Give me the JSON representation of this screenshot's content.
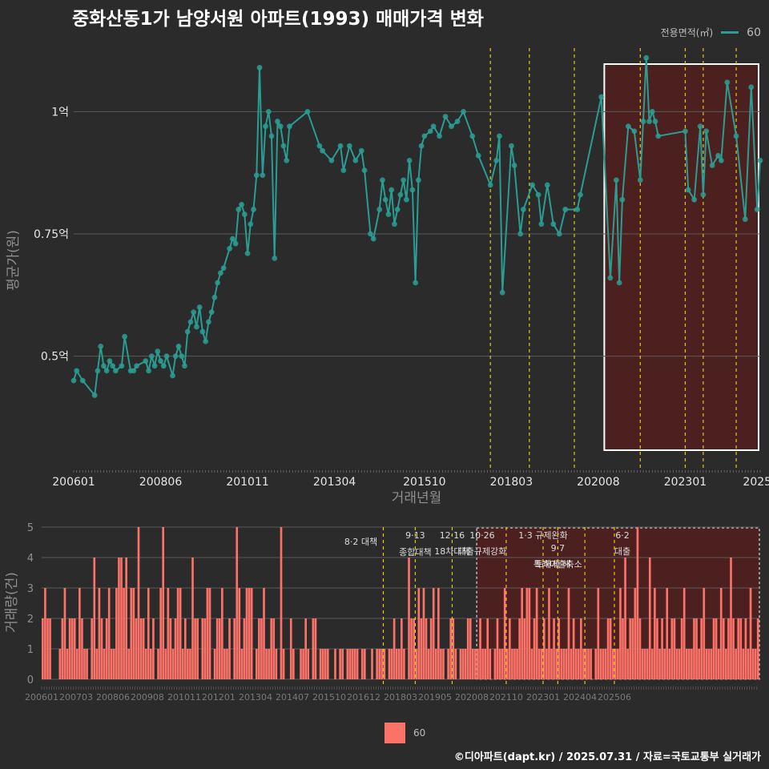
{
  "title": "중화산동1가 남양서원 아파트(1993) 매매가격 변화",
  "legend": {
    "title": "전용면적(㎡)",
    "series_label": "60"
  },
  "credit": "©디아파트(dapt.kr) / 2025.07.31 / 자료=국토교통부 실거래가",
  "colors": {
    "background": "#2b2b2b",
    "price": "#2a9d93",
    "volume": "#fa7268",
    "policy": "#e6c619",
    "highlight_fill": "#5a1e1e"
  },
  "chart_data": [
    {
      "type": "line",
      "xlabel": "거래년월",
      "ylabel": "평균가(원)",
      "x_ticks": [
        "200601",
        "200806",
        "201011",
        "201304",
        "201510",
        "201803",
        "202008",
        "202301",
        "2025"
      ],
      "y_ticks": [
        "0.5억",
        "0.75억",
        "1억"
      ],
      "ylim": [
        0.27,
        1.13
      ],
      "y_unit": "억원",
      "highlight_start": "202010",
      "policy_lines": [
        "201708",
        "201809",
        "201912",
        "202110",
        "202301",
        "202307",
        "202406",
        "202506"
      ],
      "series": [
        {
          "name": "60",
          "points": [
            [
              "200601",
              0.45
            ],
            [
              "200602",
              0.47
            ],
            [
              "200604",
              0.45
            ],
            [
              "200608",
              0.42
            ],
            [
              "200609",
              0.47
            ],
            [
              "200610",
              0.52
            ],
            [
              "200611",
              0.48
            ],
            [
              "200612",
              0.47
            ],
            [
              "200701",
              0.49
            ],
            [
              "200702",
              0.48
            ],
            [
              "200703",
              0.47
            ],
            [
              "200705",
              0.48
            ],
            [
              "200706",
              0.54
            ],
            [
              "200708",
              0.47
            ],
            [
              "200709",
              0.47
            ],
            [
              "200710",
              0.48
            ],
            [
              "200801",
              0.49
            ],
            [
              "200802",
              0.47
            ],
            [
              "200803",
              0.5
            ],
            [
              "200804",
              0.48
            ],
            [
              "200805",
              0.51
            ],
            [
              "200806",
              0.49
            ],
            [
              "200807",
              0.48
            ],
            [
              "200808",
              0.5
            ],
            [
              "200810",
              0.46
            ],
            [
              "200811",
              0.5
            ],
            [
              "200812",
              0.52
            ],
            [
              "200901",
              0.5
            ],
            [
              "200902",
              0.48
            ],
            [
              "200903",
              0.55
            ],
            [
              "200904",
              0.57
            ],
            [
              "200905",
              0.59
            ],
            [
              "200906",
              0.56
            ],
            [
              "200907",
              0.6
            ],
            [
              "200908",
              0.55
            ],
            [
              "200909",
              0.53
            ],
            [
              "200910",
              0.57
            ],
            [
              "200911",
              0.59
            ],
            [
              "200912",
              0.62
            ],
            [
              "201001",
              0.65
            ],
            [
              "201002",
              0.67
            ],
            [
              "201003",
              0.68
            ],
            [
              "201005",
              0.72
            ],
            [
              "201006",
              0.74
            ],
            [
              "201007",
              0.73
            ],
            [
              "201008",
              0.8
            ],
            [
              "201009",
              0.81
            ],
            [
              "201010",
              0.79
            ],
            [
              "201011",
              0.71
            ],
            [
              "201012",
              0.77
            ],
            [
              "201101",
              0.8
            ],
            [
              "201102",
              0.87
            ],
            [
              "201103",
              1.09
            ],
            [
              "201104",
              0.87
            ],
            [
              "201105",
              0.97
            ],
            [
              "201106",
              1.0
            ],
            [
              "201107",
              0.95
            ],
            [
              "201108",
              0.7
            ],
            [
              "201109",
              0.98
            ],
            [
              "201110",
              0.97
            ],
            [
              "201111",
              0.93
            ],
            [
              "201112",
              0.9
            ],
            [
              "201201",
              0.97
            ],
            [
              "201207",
              1.0
            ],
            [
              "201211",
              0.93
            ],
            [
              "201212",
              0.92
            ],
            [
              "201303",
              0.9
            ],
            [
              "201306",
              0.93
            ],
            [
              "201307",
              0.88
            ],
            [
              "201309",
              0.93
            ],
            [
              "201311",
              0.9
            ],
            [
              "201401",
              0.92
            ],
            [
              "201402",
              0.88
            ],
            [
              "201404",
              0.75
            ],
            [
              "201405",
              0.74
            ],
            [
              "201407",
              0.8
            ],
            [
              "201408",
              0.86
            ],
            [
              "201409",
              0.82
            ],
            [
              "201410",
              0.79
            ],
            [
              "201411",
              0.84
            ],
            [
              "201412",
              0.77
            ],
            [
              "201501",
              0.8
            ],
            [
              "201502",
              0.83
            ],
            [
              "201503",
              0.86
            ],
            [
              "201504",
              0.82
            ],
            [
              "201505",
              0.9
            ],
            [
              "201506",
              0.84
            ],
            [
              "201507",
              0.65
            ],
            [
              "201508",
              0.86
            ],
            [
              "201509",
              0.93
            ],
            [
              "201510",
              0.95
            ],
            [
              "201512",
              0.96
            ],
            [
              "201601",
              0.97
            ],
            [
              "201603",
              0.95
            ],
            [
              "201605",
              0.99
            ],
            [
              "201607",
              0.97
            ],
            [
              "201609",
              0.98
            ],
            [
              "201611",
              1.0
            ],
            [
              "201702",
              0.95
            ],
            [
              "201704",
              0.91
            ],
            [
              "201708",
              0.85
            ],
            [
              "201710",
              0.9
            ],
            [
              "201711",
              0.95
            ],
            [
              "201712",
              0.63
            ],
            [
              "201803",
              0.93
            ],
            [
              "201804",
              0.89
            ],
            [
              "201806",
              0.75
            ],
            [
              "201807",
              0.8
            ],
            [
              "201810",
              0.85
            ],
            [
              "201812",
              0.83
            ],
            [
              "201901",
              0.77
            ],
            [
              "201903",
              0.85
            ],
            [
              "201905",
              0.77
            ],
            [
              "201907",
              0.75
            ],
            [
              "201909",
              0.8
            ],
            [
              "202001",
              0.8
            ],
            [
              "202002",
              0.83
            ],
            [
              "202009",
              1.03
            ],
            [
              "202012",
              0.66
            ],
            [
              "202102",
              0.86
            ],
            [
              "202103",
              0.65
            ],
            [
              "202104",
              0.82
            ],
            [
              "202106",
              0.97
            ],
            [
              "202108",
              0.96
            ],
            [
              "202110",
              0.86
            ],
            [
              "202111",
              0.98
            ],
            [
              "202112",
              1.11
            ],
            [
              "202201",
              0.98
            ],
            [
              "202202",
              1.0
            ],
            [
              "202203",
              0.98
            ],
            [
              "202204",
              0.95
            ],
            [
              "202301",
              0.96
            ],
            [
              "202302",
              0.84
            ],
            [
              "202304",
              0.82
            ],
            [
              "202306",
              0.97
            ],
            [
              "202307",
              0.83
            ],
            [
              "202308",
              0.96
            ],
            [
              "202310",
              0.89
            ],
            [
              "202312",
              0.91
            ],
            [
              "202401",
              0.9
            ],
            [
              "202403",
              1.06
            ],
            [
              "202406",
              0.95
            ],
            [
              "202409",
              0.78
            ],
            [
              "202411",
              1.05
            ],
            [
              "202501",
              0.8
            ],
            [
              "202502",
              0.9
            ]
          ]
        }
      ]
    },
    {
      "type": "bar",
      "xlabel": "",
      "ylabel": "거래량(건)",
      "x_ticks": [
        "200601",
        "200703",
        "200806",
        "200908",
        "201011",
        "201201",
        "201304",
        "201407",
        "201510",
        "201612",
        "201803",
        "201905",
        "202008",
        "202110",
        "202301",
        "202404",
        "202506"
      ],
      "y_ticks": [
        "0",
        "1",
        "2",
        "3",
        "4",
        "5"
      ],
      "ylim": [
        0,
        5
      ],
      "highlight_start": "202010",
      "policy_annotations": [
        {
          "date": "201708",
          "label": "8·2 대책"
        },
        {
          "date": "201809",
          "label": "9·13 종합대책"
        },
        {
          "date": "201912",
          "label": "12·16 18차대책"
        },
        {
          "date": "202110",
          "label": "10·26 대출규제강화"
        },
        {
          "date": "202301",
          "label": "1·3 규제완화"
        },
        {
          "date": "202307",
          "label": "9·7 특례대출축소"
        },
        {
          "date": "202406",
          "label": "토허제 해"
        },
        {
          "date": "202506",
          "label": "6·2 대출"
        }
      ],
      "series": [
        {
          "name": "60",
          "values": [
            2,
            3,
            2,
            2,
            0,
            0,
            0,
            1,
            2,
            3,
            1,
            2,
            2,
            2,
            1,
            3,
            2,
            1,
            1,
            0,
            2,
            4,
            1,
            3,
            2,
            1,
            2,
            3,
            1,
            1,
            3,
            4,
            4,
            3,
            4,
            1,
            3,
            3,
            2,
            5,
            2,
            2,
            1,
            3,
            1,
            2,
            0,
            1,
            3,
            5,
            1,
            3,
            2,
            1,
            2,
            3,
            3,
            1,
            2,
            1,
            1,
            4,
            2,
            2,
            0,
            2,
            2,
            3,
            3,
            0,
            1,
            2,
            2,
            3,
            1,
            1,
            2,
            0,
            2,
            5,
            3,
            1,
            2,
            3,
            3,
            3,
            0,
            1,
            2,
            2,
            3,
            1,
            1,
            2,
            2,
            1,
            0,
            5,
            1,
            0,
            0,
            2,
            1,
            0,
            0,
            1,
            1,
            2,
            1,
            0,
            2,
            2,
            0,
            1,
            1,
            1,
            1,
            0,
            0,
            1,
            0,
            1,
            1,
            0,
            1,
            1,
            1,
            1,
            1,
            0,
            1,
            1,
            0,
            0,
            1,
            0,
            1,
            1,
            1,
            1,
            0,
            1,
            1,
            2,
            1,
            1,
            2,
            1,
            0,
            4,
            2,
            2,
            1,
            3,
            2,
            3,
            2,
            1,
            2,
            3,
            1,
            3,
            1,
            1,
            0,
            1,
            2,
            2,
            1,
            0,
            1,
            1,
            1,
            2,
            2,
            1,
            1,
            1,
            2,
            1,
            1,
            2,
            1,
            0,
            1,
            2,
            1,
            1,
            3,
            1,
            2,
            1,
            1,
            1,
            2,
            3,
            2,
            3,
            3,
            1,
            2,
            3,
            1,
            1,
            2,
            1,
            3,
            1,
            2,
            1,
            2,
            1,
            1,
            1,
            3,
            1,
            2,
            1,
            1,
            2,
            1,
            1,
            1,
            1,
            0,
            1,
            3,
            1,
            1,
            1,
            2,
            2,
            1,
            1,
            1,
            3,
            2,
            4,
            1,
            2,
            2,
            3,
            5,
            2,
            1,
            1,
            1,
            4,
            1,
            3,
            2,
            1,
            2,
            1,
            3,
            1,
            2,
            2,
            1,
            1,
            2,
            3,
            1,
            1,
            1,
            2,
            2,
            1,
            2,
            3,
            1,
            1,
            1,
            2,
            2,
            1,
            3,
            2,
            1,
            2,
            4,
            2,
            1,
            2,
            2,
            1,
            2,
            1,
            3,
            1,
            1,
            2
          ]
        }
      ]
    }
  ]
}
